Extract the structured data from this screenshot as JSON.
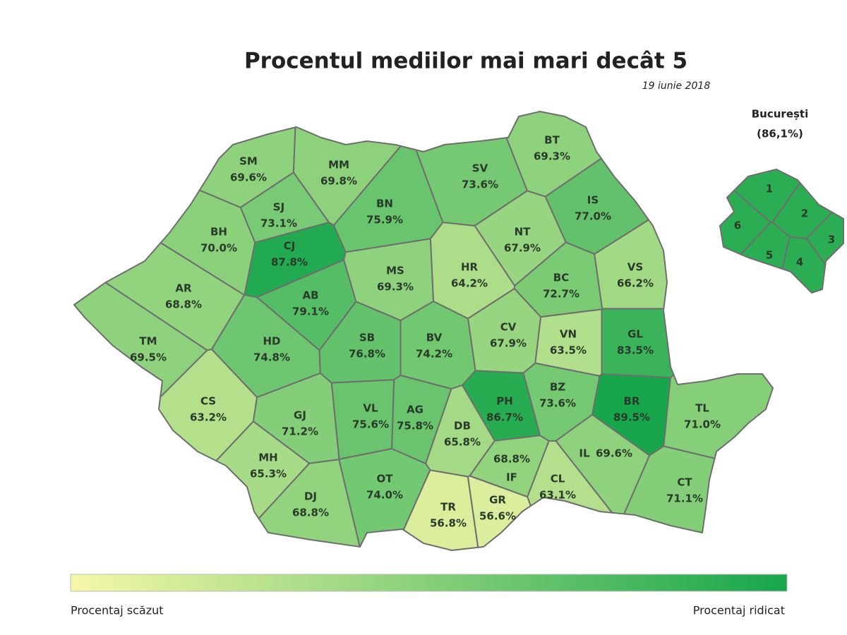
{
  "header": {
    "title": "Procentul mediilor mai mari decât 5",
    "subtitle": "19 iunie 2018"
  },
  "counties": [
    {
      "code": "SM",
      "value": 69.6,
      "label": "69.6%"
    },
    {
      "code": "MM",
      "value": 69.8,
      "label": "69.8%"
    },
    {
      "code": "BT",
      "value": 69.3,
      "label": "69.3%"
    },
    {
      "code": "SV",
      "value": 73.6,
      "label": "73.6%"
    },
    {
      "code": "BN",
      "value": 75.9,
      "label": "75.9%"
    },
    {
      "code": "SJ",
      "value": 73.1,
      "label": "73.1%"
    },
    {
      "code": "IS",
      "value": 77.0,
      "label": "77.0%"
    },
    {
      "code": "BH",
      "value": 70.0,
      "label": "70.0%"
    },
    {
      "code": "CJ",
      "value": 87.8,
      "label": "87.8%"
    },
    {
      "code": "NT",
      "value": 67.9,
      "label": "67.9%"
    },
    {
      "code": "MS",
      "value": 69.3,
      "label": "69.3%"
    },
    {
      "code": "HR",
      "value": 64.2,
      "label": "64.2%"
    },
    {
      "code": "BC",
      "value": 72.7,
      "label": "72.7%"
    },
    {
      "code": "VS",
      "value": 66.2,
      "label": "66.2%"
    },
    {
      "code": "AR",
      "value": 68.8,
      "label": "68.8%"
    },
    {
      "code": "AB",
      "value": 79.1,
      "label": "79.1%"
    },
    {
      "code": "TM",
      "value": 69.5,
      "label": "69.5%"
    },
    {
      "code": "HD",
      "value": 74.8,
      "label": "74.8%"
    },
    {
      "code": "SB",
      "value": 76.8,
      "label": "76.8%"
    },
    {
      "code": "BV",
      "value": 74.2,
      "label": "74.2%"
    },
    {
      "code": "CV",
      "value": 67.9,
      "label": "67.9%"
    },
    {
      "code": "VN",
      "value": 63.5,
      "label": "63.5%"
    },
    {
      "code": "GL",
      "value": 83.5,
      "label": "83.5%"
    },
    {
      "code": "CS",
      "value": 63.2,
      "label": "63.2%"
    },
    {
      "code": "GJ",
      "value": 71.2,
      "label": "71.2%"
    },
    {
      "code": "VL",
      "value": 75.6,
      "label": "75.6%"
    },
    {
      "code": "AG",
      "value": 75.8,
      "label": "75.8%"
    },
    {
      "code": "PH",
      "value": 86.7,
      "label": "86.7%"
    },
    {
      "code": "BZ",
      "value": 73.6,
      "label": "73.6%"
    },
    {
      "code": "BR",
      "value": 89.5,
      "label": "89.5%"
    },
    {
      "code": "TL",
      "value": 71.0,
      "label": "71.0%"
    },
    {
      "code": "MH",
      "value": 65.3,
      "label": "65.3%"
    },
    {
      "code": "DJ",
      "value": 68.8,
      "label": "68.8%"
    },
    {
      "code": "OT",
      "value": 74.0,
      "label": "74.0%"
    },
    {
      "code": "DB",
      "value": 65.8,
      "label": "65.8%"
    },
    {
      "code": "IF",
      "value": 68.8,
      "label": "68.8%"
    },
    {
      "code": "IL",
      "value": 69.6,
      "label": "69.6%"
    },
    {
      "code": "CL",
      "value": 63.1,
      "label": "63.1%"
    },
    {
      "code": "CT",
      "value": 71.1,
      "label": "71.1%"
    },
    {
      "code": "TR",
      "value": 56.8,
      "label": "56.8%"
    },
    {
      "code": "GR",
      "value": 56.6,
      "label": "56.6%"
    }
  ],
  "bucharest": {
    "name": "București",
    "value": 86.1,
    "label": "(86,1%)",
    "sectors": [
      "1",
      "2",
      "3",
      "4",
      "5",
      "6"
    ]
  },
  "legend": {
    "low_label": "Procentaj scăzut",
    "high_label": "Procentaj ridicat",
    "low_color": "#f6f8a8",
    "high_color": "#17a64b"
  }
}
